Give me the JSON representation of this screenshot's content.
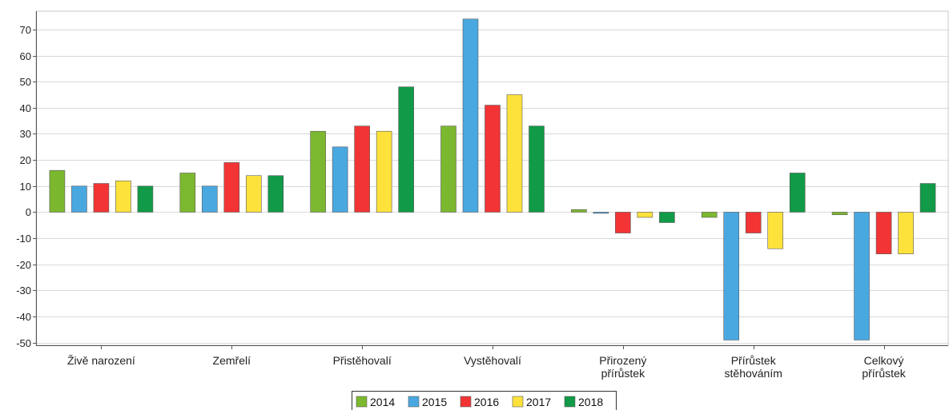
{
  "chart_data": {
    "type": "bar",
    "categories": [
      [
        "Živě narození"
      ],
      [
        "Zemřelí"
      ],
      [
        "Přistěhovalí"
      ],
      [
        "Vystěhovalí"
      ],
      [
        "Přirozený",
        "přírůstek"
      ],
      [
        "Přírůstek",
        "stěhováním"
      ],
      [
        "Celkový",
        "přírůstek"
      ]
    ],
    "series": [
      {
        "name": "2014",
        "color": "#7cb82f",
        "values": [
          16,
          15,
          31,
          33,
          1,
          -2,
          -1
        ]
      },
      {
        "name": "2015",
        "color": "#4aa8e0",
        "values": [
          10,
          10,
          25,
          74,
          0,
          -49,
          -49
        ]
      },
      {
        "name": "2016",
        "color": "#f23434",
        "values": [
          11,
          19,
          33,
          41,
          -8,
          -8,
          -16
        ]
      },
      {
        "name": "2017",
        "color": "#fde23c",
        "values": [
          12,
          14,
          31,
          45,
          -2,
          -14,
          -16
        ]
      },
      {
        "name": "2018",
        "color": "#119a47",
        "values": [
          10,
          14,
          48,
          33,
          -4,
          15,
          11
        ]
      }
    ],
    "ylim": [
      -51,
      77
    ],
    "yticks": [
      70,
      60,
      50,
      40,
      30,
      20,
      10,
      0,
      -10,
      -20,
      -30,
      -40,
      -50
    ],
    "grid": true,
    "legend_position": "bottom-center"
  }
}
